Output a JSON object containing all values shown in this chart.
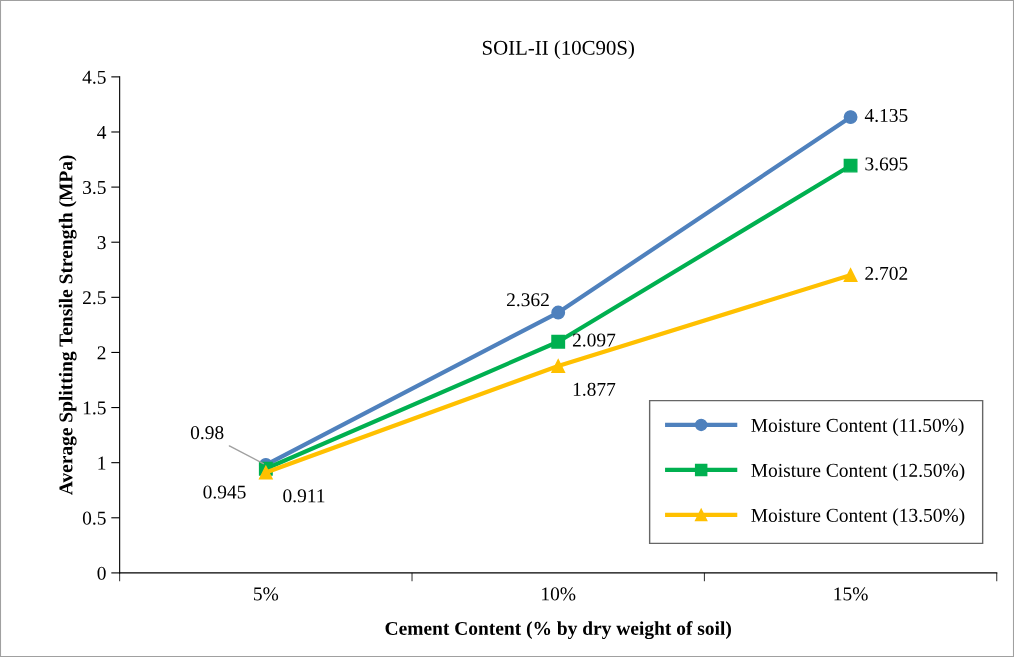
{
  "chart_data": {
    "type": "line",
    "title": "SOIL-II (10C90S)",
    "xlabel": "Cement Content (% by dry weight of soil)",
    "ylabel": "Average Splitting Tensile Strength (MPa)",
    "categories": [
      "5%",
      "10%",
      "15%"
    ],
    "series": [
      {
        "name": "Moisture Content (11.50%)",
        "color": "#4f81bd",
        "marker": "circle",
        "values": [
          0.98,
          2.362,
          4.135
        ]
      },
      {
        "name": "Moisture Content (12.50%)",
        "color": "#00b050",
        "marker": "square",
        "values": [
          0.945,
          2.097,
          3.695
        ]
      },
      {
        "name": "Moisture Content (13.50%)",
        "color": "#ffc000",
        "marker": "triangle",
        "values": [
          0.911,
          1.877,
          2.702
        ]
      }
    ],
    "ylim": [
      0,
      4.5
    ],
    "yticks": [
      0,
      0.5,
      1,
      1.5,
      2,
      2.5,
      3,
      3.5,
      4,
      4.5
    ],
    "data_labels": true,
    "grid": false,
    "legend": "bottom right",
    "line_style": "solid"
  }
}
